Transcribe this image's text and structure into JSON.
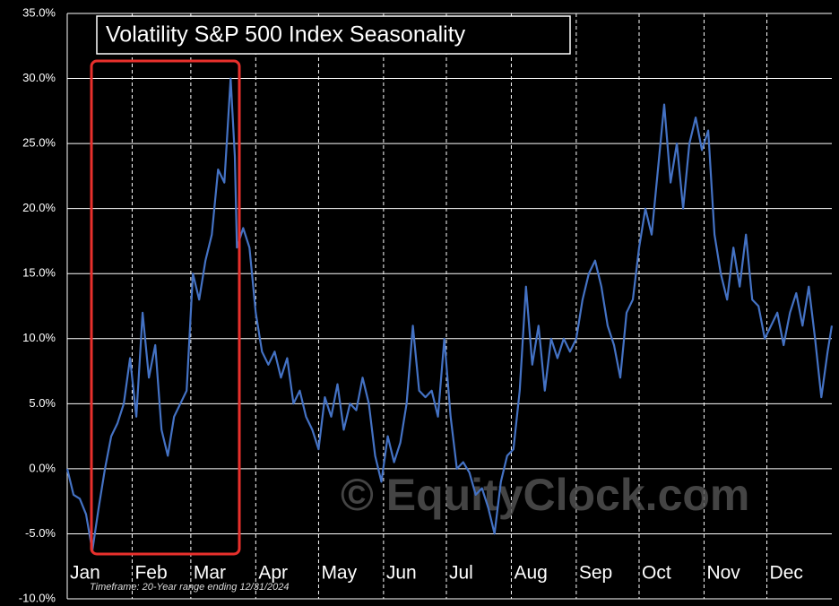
{
  "chart_data": {
    "type": "line",
    "title": "Volatility S&P 500 Index Seasonality",
    "watermark": "© EquityClock.com",
    "footnote": "Timeframe: 20-Year range ending 12/31/2024",
    "xlim": [
      0,
      365
    ],
    "xticks": [
      {
        "value": 0,
        "label": "Jan"
      },
      {
        "value": 31,
        "label": "Feb"
      },
      {
        "value": 59,
        "label": "Mar"
      },
      {
        "value": 90,
        "label": "Apr"
      },
      {
        "value": 120,
        "label": "May"
      },
      {
        "value": 151,
        "label": "Jun"
      },
      {
        "value": 181,
        "label": "Jul"
      },
      {
        "value": 212,
        "label": "Aug"
      },
      {
        "value": 243,
        "label": "Sep"
      },
      {
        "value": 273,
        "label": "Oct"
      },
      {
        "value": 304,
        "label": "Nov"
      },
      {
        "value": 334,
        "label": "Dec"
      }
    ],
    "ylim": [
      -10,
      35
    ],
    "yticks": [
      {
        "value": -10,
        "label": "-10.0%"
      },
      {
        "value": -5,
        "label": "-5.0%"
      },
      {
        "value": 0,
        "label": "0.0%"
      },
      {
        "value": 5,
        "label": "5.0%"
      },
      {
        "value": 10,
        "label": "10.0%"
      },
      {
        "value": 15,
        "label": "15.0%"
      },
      {
        "value": 20,
        "label": "20.0%"
      },
      {
        "value": 25,
        "label": "25.0%"
      },
      {
        "value": 30,
        "label": "30.0%"
      },
      {
        "value": 35,
        "label": "35.0%"
      }
    ],
    "grid": true,
    "series": [
      {
        "color": "#4472c4",
        "x": [
          0,
          3,
          6,
          9,
          12,
          15,
          18,
          21,
          24,
          27,
          30,
          33,
          36,
          39,
          42,
          45,
          48,
          51,
          54,
          57,
          60,
          63,
          66,
          69,
          72,
          75,
          78,
          80,
          81,
          84,
          87,
          90,
          93,
          96,
          99,
          102,
          105,
          108,
          111,
          114,
          117,
          120,
          123,
          126,
          129,
          132,
          135,
          138,
          141,
          144,
          147,
          150,
          153,
          156,
          159,
          162,
          165,
          168,
          171,
          174,
          177,
          180,
          183,
          186,
          189,
          192,
          195,
          198,
          201,
          204,
          207,
          210,
          213,
          216,
          219,
          222,
          225,
          228,
          231,
          234,
          237,
          240,
          243,
          246,
          249,
          252,
          255,
          258,
          261,
          264,
          267,
          270,
          273,
          276,
          279,
          282,
          285,
          288,
          291,
          294,
          297,
          300,
          303,
          306,
          309,
          312,
          315,
          318,
          321,
          324,
          327,
          330,
          333,
          336,
          339,
          342,
          345,
          348,
          351,
          354,
          357,
          360,
          363,
          365
        ],
        "values": [
          0,
          -2,
          -2.3,
          -3.5,
          -6.3,
          -3,
          0,
          2.5,
          3.5,
          5,
          8.5,
          4,
          12,
          7,
          9.5,
          3,
          1,
          4,
          5,
          6,
          15,
          13,
          16,
          18,
          23,
          22,
          30,
          24,
          17,
          18.5,
          17,
          12,
          9,
          8,
          9,
          7,
          8.5,
          5,
          6,
          4,
          3,
          1.5,
          5.5,
          4,
          6.5,
          3,
          5,
          4.5,
          7,
          5,
          1,
          -1,
          2.5,
          0.5,
          2,
          5,
          11,
          6,
          5.5,
          6,
          4,
          10,
          4,
          0,
          0.5,
          -0.3,
          -2,
          -1.5,
          -3,
          -5,
          -1,
          1,
          1.5,
          6,
          14,
          8,
          11,
          6,
          10,
          8.5,
          10,
          9,
          10,
          13,
          15,
          16,
          14,
          11,
          9.5,
          7,
          12,
          13,
          17,
          20,
          18,
          23,
          28,
          22,
          25,
          20,
          25,
          27,
          24.5,
          26,
          18,
          15,
          13,
          17,
          14,
          18,
          13,
          12.5,
          10,
          11,
          12,
          9.5,
          12,
          13.5,
          11,
          14,
          10,
          5.5,
          9,
          11
        ]
      }
    ]
  }
}
